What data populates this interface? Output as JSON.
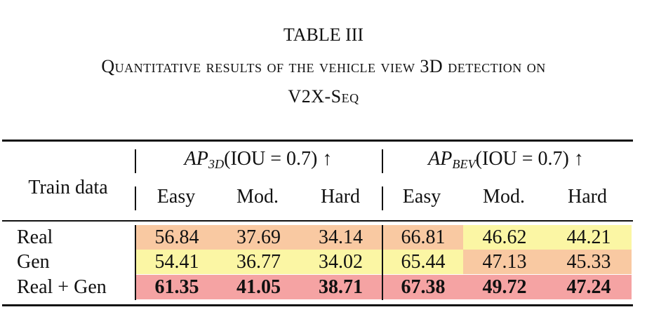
{
  "header": {
    "title": "TABLE III",
    "caption_line1": "Quantitative results of the vehicle view 3D detection on",
    "caption_line2": "V2X-Seq"
  },
  "table": {
    "row_header": "Train data",
    "groups": [
      {
        "base": "AP",
        "sub": "3D",
        "rest": "(IOU = 0.7) ↑"
      },
      {
        "base": "AP",
        "sub": "BEV",
        "rest": "(IOU = 0.7) ↑"
      }
    ],
    "columns": [
      "Easy",
      "Mod.",
      "Hard",
      "Easy",
      "Mod.",
      "Hard"
    ],
    "rows": [
      {
        "label": "Real",
        "bold": false,
        "values": [
          "56.84",
          "37.69",
          "34.14",
          "66.81",
          "46.62",
          "44.21"
        ],
        "colors": [
          "#f9c9a2",
          "#f9c9a2",
          "#f9c9a2",
          "#f9c9a2",
          "#fbf6a4",
          "#fbf6a4"
        ]
      },
      {
        "label": "Gen",
        "bold": false,
        "values": [
          "54.41",
          "36.77",
          "34.02",
          "65.44",
          "47.13",
          "45.33"
        ],
        "colors": [
          "#fbf6a4",
          "#fbf6a4",
          "#fbf6a4",
          "#fbf6a4",
          "#f9c9a2",
          "#f9c9a2"
        ]
      },
      {
        "label": "Real + Gen",
        "bold": true,
        "values": [
          "61.35",
          "41.05",
          "38.71",
          "67.38",
          "49.72",
          "47.24"
        ],
        "colors": [
          "#f5a3a3",
          "#f5a3a3",
          "#f5a3a3",
          "#f5a3a3",
          "#f5a3a3",
          "#f5a3a3"
        ]
      }
    ]
  }
}
